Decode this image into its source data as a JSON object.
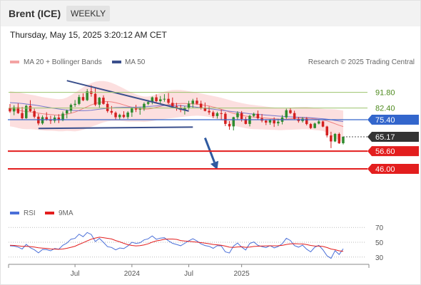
{
  "header": {
    "instrument": "Brent (ICE)",
    "period": "WEEKLY"
  },
  "datetime": "Thursday, May 15, 2025 3:20:12 AM CET",
  "legend": {
    "bollinger_label": "MA 20 + Bollinger Bands",
    "ma50_label": "MA 50",
    "credit": "Research © 2025 Trading Central",
    "rsi_label": "RSI",
    "rsi_ma_label": "9MA"
  },
  "colors": {
    "up_candle": "#2e8b2e",
    "down_candle": "#d42020",
    "bollinger_fill": "#fcd9d9",
    "ma20": "#f08080",
    "ma50": "#7777cc",
    "trendline": "#3a4f8c",
    "level_green": "#9bc26b",
    "level_blue": "#3366cc",
    "level_red": "#e31e1e",
    "current_price": "#333333",
    "rsi": "#4a6fd8",
    "rsi_ma": "#e31e1e",
    "arrow": "#2f5aa0"
  },
  "chart_data": [
    {
      "type": "candlestick",
      "title": "",
      "ylim": [
        40,
        104
      ],
      "x_ticks": [
        "Jul",
        "2024",
        "Jul",
        "2025"
      ],
      "x_tick_index": [
        16,
        30,
        44,
        57
      ],
      "levels": [
        {
          "value": 91.8,
          "label": "91.80",
          "style": "green-line"
        },
        {
          "value": 82.4,
          "label": "82.40",
          "style": "green-line"
        },
        {
          "value": 75.4,
          "label": "75.40",
          "style": "blue-badge"
        },
        {
          "value": 65.17,
          "label": "65.17",
          "style": "current-price"
        },
        {
          "value": 56.6,
          "label": "56.60",
          "style": "red-badge"
        },
        {
          "value": 46.0,
          "label": "46.00",
          "style": "red-badge"
        }
      ],
      "trendlines": [
        {
          "from": [
            14,
            98.8
          ],
          "to": [
            44,
            80.6
          ]
        },
        {
          "from": [
            7,
            70.2
          ],
          "to": [
            45,
            71.0
          ]
        }
      ],
      "forecast_arrow": {
        "from": [
          48,
          64.5
        ],
        "to": [
          51,
          45.5
        ]
      },
      "series": {
        "ohlc": [
          [
            82.5,
            84.8,
            79.6,
            80.4
          ],
          [
            80.4,
            84.1,
            78.1,
            82.9
          ],
          [
            82.9,
            85.2,
            78.9,
            79.4
          ],
          [
            79.4,
            83.1,
            75.4,
            76.3
          ],
          [
            76.3,
            84.4,
            75.9,
            83.7
          ],
          [
            83.7,
            87.1,
            79.9,
            80.6
          ],
          [
            80.6,
            82.0,
            76.2,
            77.2
          ],
          [
            77.2,
            79.0,
            72.1,
            73.2
          ],
          [
            73.2,
            78.0,
            72.4,
            76.9
          ],
          [
            76.9,
            79.9,
            74.8,
            75.2
          ],
          [
            75.2,
            77.8,
            72.9,
            74.8
          ],
          [
            74.8,
            78.0,
            73.5,
            76.7
          ],
          [
            76.7,
            78.7,
            73.4,
            75.1
          ],
          [
            75.1,
            80.3,
            74.5,
            79.1
          ],
          [
            79.1,
            81.5,
            76.2,
            80.9
          ],
          [
            80.9,
            85.1,
            79.4,
            84.3
          ],
          [
            84.3,
            87.2,
            83.1,
            84.9
          ],
          [
            84.9,
            90.3,
            84.1,
            89.0
          ],
          [
            89.0,
            91.2,
            86.5,
            87.1
          ],
          [
            87.1,
            93.8,
            86.6,
            92.4
          ],
          [
            92.4,
            96.0,
            89.2,
            90.9
          ],
          [
            90.9,
            94.2,
            83.5,
            84.4
          ],
          [
            84.4,
            89.0,
            82.7,
            88.6
          ],
          [
            88.6,
            90.0,
            84.4,
            84.9
          ],
          [
            84.9,
            86.3,
            79.6,
            80.6
          ],
          [
            80.6,
            83.6,
            78.5,
            79.6
          ],
          [
            79.6,
            80.4,
            75.2,
            76.9
          ],
          [
            76.9,
            79.0,
            75.6,
            78.3
          ],
          [
            78.3,
            80.5,
            76.3,
            77.0
          ],
          [
            77.0,
            80.5,
            75.9,
            79.7
          ],
          [
            79.7,
            82.9,
            77.1,
            82.4
          ],
          [
            82.4,
            84.3,
            80.0,
            81.5
          ],
          [
            81.5,
            82.9,
            78.4,
            82.0
          ],
          [
            82.0,
            85.8,
            80.7,
            84.9
          ],
          [
            84.9,
            87.2,
            84.1,
            85.9
          ],
          [
            85.9,
            89.3,
            84.6,
            88.8
          ],
          [
            88.8,
            90.6,
            85.3,
            86.5
          ],
          [
            86.5,
            89.6,
            85.1,
            87.6
          ],
          [
            87.6,
            90.7,
            86.2,
            87.9
          ],
          [
            87.9,
            91.4,
            84.8,
            85.5
          ],
          [
            85.5,
            88.7,
            82.9,
            83.4
          ],
          [
            83.4,
            85.5,
            80.8,
            82.6
          ],
          [
            82.6,
            84.3,
            79.9,
            81.3
          ],
          [
            81.3,
            83.5,
            78.5,
            82.6
          ],
          [
            82.6,
            86.7,
            81.5,
            85.0
          ],
          [
            85.0,
            87.9,
            82.4,
            86.8
          ],
          [
            86.8,
            88.6,
            84.3,
            85.0
          ],
          [
            85.0,
            86.8,
            81.5,
            82.3
          ],
          [
            82.3,
            85.7,
            80.4,
            80.7
          ],
          [
            80.7,
            83.3,
            78.4,
            79.8
          ],
          [
            79.8,
            80.8,
            76.4,
            77.6
          ],
          [
            77.6,
            80.2,
            76.1,
            79.3
          ],
          [
            79.3,
            81.5,
            75.5,
            79.0
          ],
          [
            79.0,
            80.1,
            71.6,
            72.9
          ],
          [
            72.9,
            74.6,
            69.4,
            71.4
          ],
          [
            71.4,
            77.2,
            69.0,
            76.9
          ],
          [
            76.9,
            80.5,
            75.6,
            79.4
          ],
          [
            79.4,
            80.6,
            74.3,
            75.8
          ],
          [
            75.8,
            77.1,
            72.6,
            72.9
          ],
          [
            72.9,
            78.3,
            71.4,
            77.7
          ],
          [
            77.7,
            79.7,
            76.9,
            78.9
          ],
          [
            78.9,
            80.9,
            75.6,
            76.3
          ],
          [
            76.3,
            78.8,
            73.8,
            74.8
          ],
          [
            74.8,
            75.7,
            72.2,
            73.7
          ],
          [
            73.7,
            75.8,
            72.4,
            75.1
          ],
          [
            75.1,
            76.8,
            71.1,
            73.2
          ],
          [
            73.2,
            76.0,
            71.7,
            74.2
          ],
          [
            74.2,
            78.2,
            72.6,
            76.8
          ],
          [
            76.8,
            82.0,
            75.9,
            81.1
          ],
          [
            81.1,
            82.6,
            78.8,
            79.4
          ],
          [
            79.4,
            80.8,
            75.4,
            75.9
          ],
          [
            75.9,
            77.1,
            73.6,
            74.6
          ],
          [
            74.6,
            77.0,
            73.7,
            76.0
          ],
          [
            76.0,
            77.0,
            72.0,
            72.8
          ],
          [
            72.8,
            73.4,
            69.8,
            70.4
          ],
          [
            70.4,
            73.7,
            70.2,
            73.1
          ],
          [
            73.1,
            75.4,
            72.6,
            74.4
          ],
          [
            74.4,
            74.8,
            70.9,
            71.3
          ],
          [
            71.3,
            71.8,
            64.8,
            66.0
          ],
          [
            66.0,
            68.2,
            58.4,
            62.4
          ],
          [
            62.4,
            67.4,
            62.0,
            66.9
          ],
          [
            66.9,
            67.7,
            60.9,
            61.3
          ],
          [
            61.3,
            65.4,
            60.6,
            65.2
          ]
        ],
        "ma20": [
          82.0,
          81.6,
          81.1,
          80.6,
          80.3,
          80.1,
          79.8,
          79.4,
          79.0,
          78.7,
          78.5,
          78.3,
          78.1,
          78.2,
          78.7,
          79.3,
          80.0,
          81.0,
          82.1,
          83.2,
          84.3,
          85.1,
          85.8,
          86.2,
          86.3,
          86.1,
          85.6,
          85.0,
          84.3,
          83.5,
          82.9,
          82.4,
          82.0,
          81.7,
          81.8,
          82.2,
          82.8,
          83.4,
          84.0,
          84.5,
          84.8,
          85.0,
          85.1,
          85.1,
          85.0,
          84.9,
          84.7,
          84.4,
          84.0,
          83.6,
          83.0,
          82.4,
          81.7,
          80.9,
          80.0,
          79.2,
          78.6,
          78.1,
          77.6,
          77.2,
          77.0,
          76.8,
          76.6,
          76.4,
          76.2,
          76.0,
          75.8,
          75.7,
          75.8,
          76.0,
          76.2,
          76.3,
          76.4,
          76.4,
          76.2,
          75.9,
          75.6,
          75.3,
          74.7,
          73.9,
          73.0,
          72.1,
          71.3
        ],
        "ma50": [
          85.6,
          85.5,
          85.3,
          85.1,
          84.8,
          84.5,
          84.2,
          83.8,
          83.4,
          83.0,
          82.6,
          82.2,
          81.8,
          81.5,
          81.2,
          81.0,
          80.9,
          80.8,
          80.8,
          80.9,
          81.1,
          81.4,
          81.7,
          82.0,
          82.3,
          82.5,
          82.7,
          82.8,
          82.9,
          82.9,
          82.9,
          82.9,
          83.0,
          83.1,
          83.3,
          83.5,
          83.7,
          83.8,
          83.9,
          84.0,
          84.0,
          83.9,
          83.8,
          83.6,
          83.4,
          83.2,
          82.9,
          82.6,
          82.3,
          82.0,
          81.7,
          81.4,
          81.1,
          80.8,
          80.5,
          80.2,
          79.9,
          79.6,
          79.3,
          79.0,
          78.8,
          78.6,
          78.4,
          78.2,
          78.0,
          77.8,
          77.6,
          77.4,
          77.2,
          77.1,
          77.0,
          76.9,
          76.8,
          76.7,
          76.6,
          76.4,
          76.2,
          76.0,
          75.7,
          75.4,
          75.0,
          74.6,
          74.3
        ],
        "bollinger_upper": [
          92.5,
          92.2,
          91.8,
          91.3,
          90.8,
          90.4,
          90.0,
          89.5,
          89.0,
          88.6,
          88.2,
          87.9,
          87.7,
          87.9,
          88.7,
          90.0,
          91.6,
          93.2,
          94.8,
          96.2,
          97.4,
          98.2,
          98.6,
          98.6,
          98.2,
          97.5,
          96.5,
          95.3,
          94.1,
          92.8,
          91.6,
          90.6,
          89.8,
          89.3,
          89.3,
          89.8,
          90.5,
          91.4,
          92.2,
          92.8,
          93.2,
          93.3,
          93.2,
          92.9,
          92.5,
          92.1,
          91.6,
          91.1,
          90.6,
          90.1,
          89.6,
          89.1,
          88.5,
          87.9,
          87.2,
          86.5,
          85.9,
          85.4,
          84.9,
          84.5,
          84.2,
          83.9,
          83.6,
          83.3,
          83.0,
          82.7,
          82.4,
          82.2,
          82.3,
          82.6,
          82.9,
          83.0,
          83.1,
          83.1,
          82.9,
          82.6,
          82.2,
          81.9,
          81.7,
          81.7,
          81.6,
          81.3,
          80.9
        ],
        "bollinger_lower": [
          71.5,
          71.0,
          70.4,
          69.9,
          69.8,
          69.8,
          69.6,
          69.3,
          69.0,
          68.8,
          68.8,
          68.7,
          68.5,
          68.5,
          68.7,
          68.6,
          68.4,
          68.8,
          69.4,
          70.2,
          71.2,
          72.0,
          73.0,
          73.8,
          74.4,
          74.7,
          74.7,
          74.7,
          74.5,
          74.2,
          74.2,
          74.2,
          74.2,
          74.1,
          74.3,
          74.6,
          75.1,
          75.4,
          75.8,
          76.2,
          76.4,
          76.7,
          77.0,
          77.3,
          77.5,
          77.7,
          77.8,
          77.7,
          77.4,
          77.1,
          76.4,
          75.7,
          74.9,
          73.9,
          72.8,
          71.9,
          71.3,
          70.8,
          70.3,
          69.9,
          69.8,
          69.7,
          69.6,
          69.5,
          69.4,
          69.3,
          69.2,
          69.2,
          69.3,
          69.4,
          69.5,
          69.6,
          69.7,
          69.7,
          69.5,
          69.2,
          69.0,
          68.7,
          67.7,
          66.1,
          64.4,
          62.9,
          61.7
        ]
      }
    },
    {
      "type": "line",
      "title": "",
      "ylim": [
        25,
        75
      ],
      "y_ticks": [
        70,
        50,
        30
      ],
      "series": [
        {
          "name": "RSI",
          "values": [
            45.2,
            44.8,
            43.5,
            40.9,
            47.1,
            42.6,
            39.8,
            35.7,
            40.3,
            40.0,
            38.5,
            41.5,
            40.6,
            45.9,
            48.8,
            54.1,
            55.2,
            60.9,
            57.5,
            63.2,
            60.5,
            51.0,
            55.3,
            49.9,
            44.0,
            43.0,
            39.7,
            42.3,
            41.4,
            45.0,
            50.0,
            48.5,
            49.2,
            53.2,
            54.6,
            58.6,
            54.0,
            55.6,
            56.1,
            52.0,
            48.6,
            47.0,
            45.3,
            48.6,
            52.0,
            54.7,
            51.7,
            47.8,
            45.6,
            44.5,
            41.8,
            45.5,
            45.1,
            37.0,
            35.5,
            44.7,
            48.9,
            43.6,
            39.5,
            48.4,
            50.4,
            45.9,
            44.1,
            42.8,
            45.5,
            42.4,
            44.3,
            48.1,
            55.4,
            52.3,
            45.5,
            43.4,
            46.2,
            40.7,
            37.0,
            43.4,
            45.8,
            39.9,
            31.8,
            28.3,
            38.7,
            33.5,
            41.2
          ]
        },
        {
          "name": "9MA",
          "values": [
            46.0,
            45.7,
            45.2,
            44.5,
            44.4,
            44.1,
            43.5,
            42.6,
            42.1,
            41.7,
            41.0,
            40.8,
            40.5,
            40.9,
            41.8,
            43.2,
            44.6,
            47.1,
            49.3,
            51.8,
            54.1,
            55.7,
            56.8,
            56.2,
            55.3,
            54.4,
            52.3,
            50.6,
            48.6,
            46.7,
            45.7,
            45.1,
            45.4,
            46.4,
            47.9,
            50.1,
            51.8,
            52.8,
            53.9,
            54.3,
            54.3,
            53.8,
            52.3,
            51.6,
            51.2,
            50.7,
            50.1,
            49.5,
            48.8,
            48.0,
            47.0,
            46.5,
            46.0,
            44.8,
            43.4,
            43.1,
            43.7,
            43.8,
            43.2,
            43.5,
            44.3,
            44.6,
            44.9,
            45.1,
            45.2,
            45.2,
            45.3,
            45.8,
            47.0,
            47.8,
            48.1,
            47.8,
            47.7,
            46.9,
            45.7,
            45.0,
            44.8,
            44.3,
            42.9,
            40.9,
            39.9,
            38.5,
            37.8
          ]
        }
      ]
    }
  ]
}
